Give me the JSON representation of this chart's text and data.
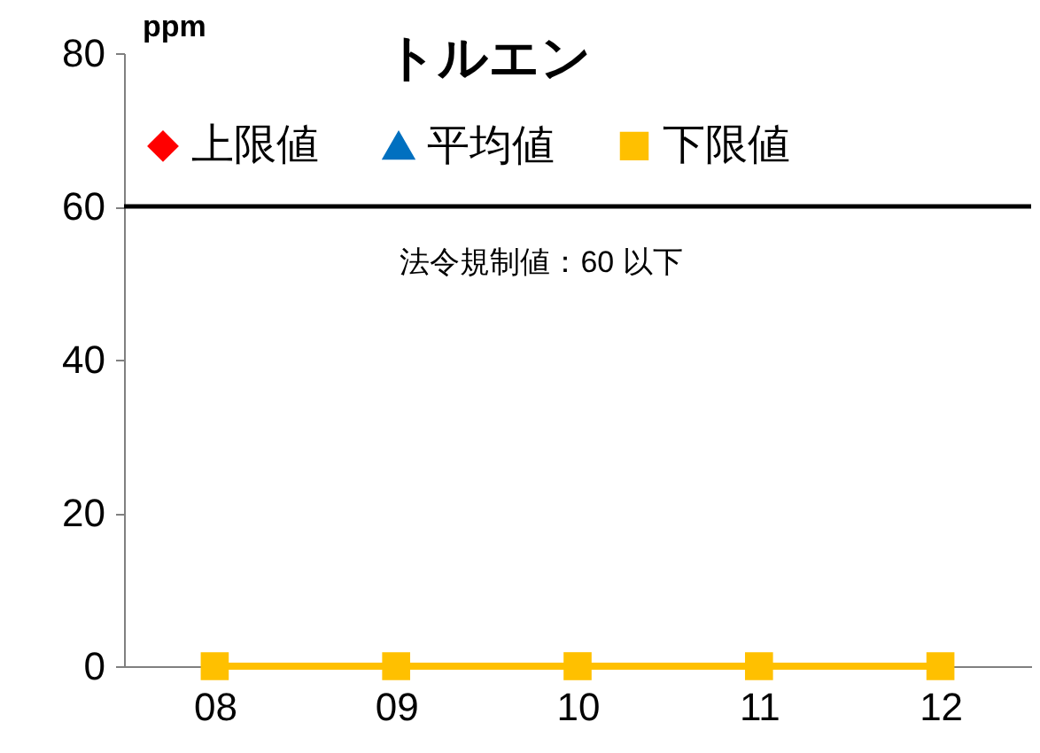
{
  "chart_data": {
    "type": "line",
    "title": "トルエン",
    "ylabel": "ppm",
    "categories": [
      "08",
      "09",
      "10",
      "11",
      "12"
    ],
    "series": [
      {
        "name": "上限値",
        "color": "#ff0000",
        "marker": "diamond",
        "values": [
          null,
          null,
          null,
          null,
          null
        ]
      },
      {
        "name": "平均値",
        "color": "#0070c0",
        "marker": "triangle",
        "values": [
          null,
          null,
          null,
          null,
          null
        ]
      },
      {
        "name": "下限値",
        "color": "#ffc000",
        "marker": "square",
        "values": [
          0,
          0,
          0,
          0,
          0
        ]
      }
    ],
    "ylim": [
      0,
      80
    ],
    "yticks": [
      0,
      20,
      40,
      60,
      80
    ],
    "grid": false,
    "legend": "top",
    "ref_lines": [
      {
        "axis": "y",
        "value": 60,
        "label": "法令規制値：60 以下",
        "color": "#000000"
      }
    ]
  }
}
